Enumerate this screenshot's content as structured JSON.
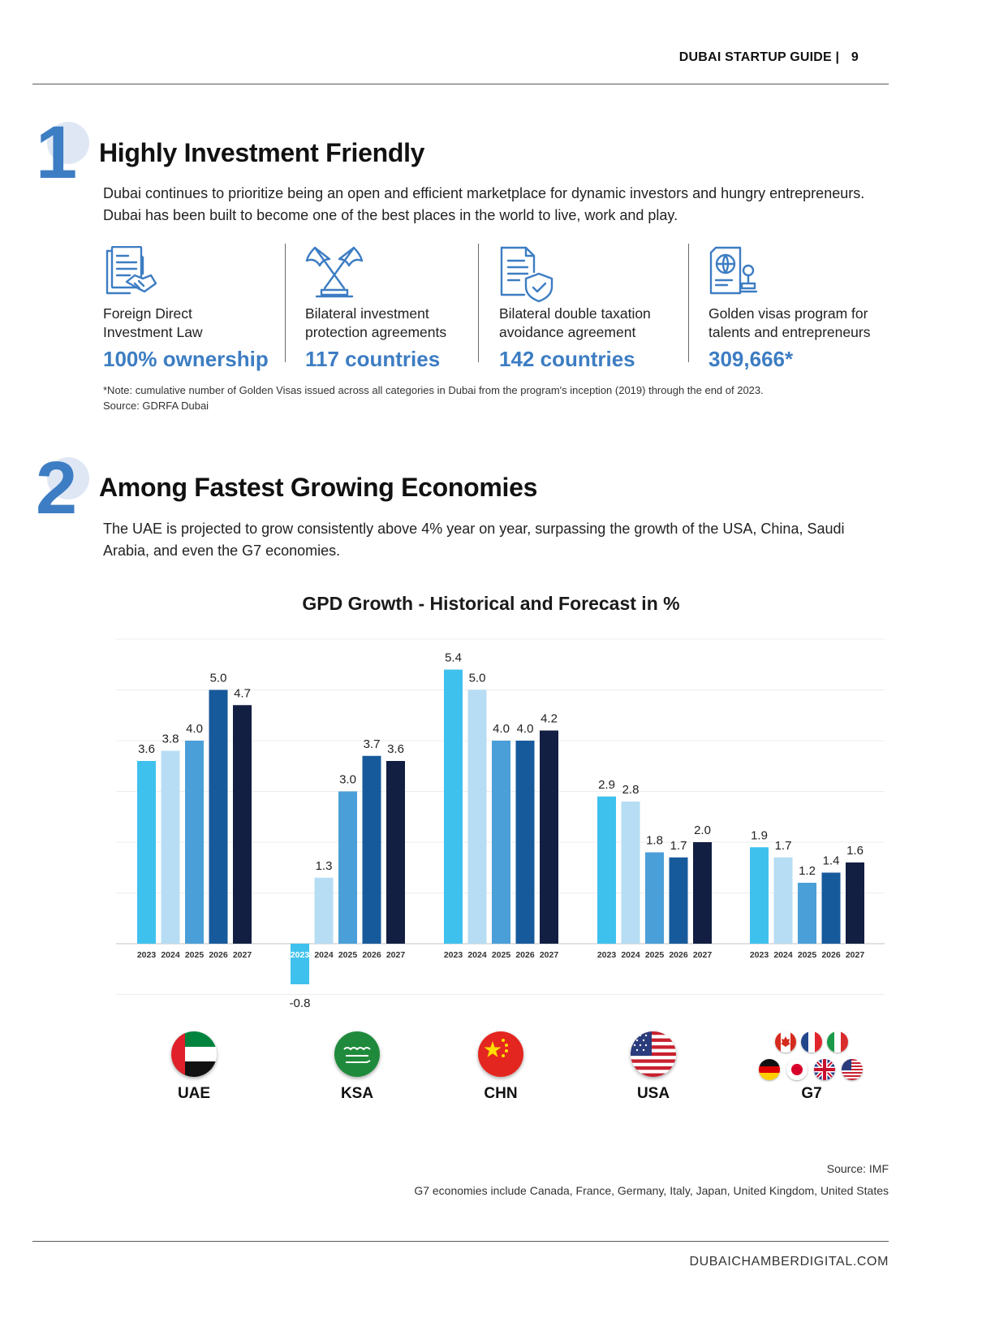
{
  "header": {
    "title": "DUBAI STARTUP GUIDE |",
    "page_number": "9"
  },
  "section1": {
    "number": "1",
    "title": "Highly Investment Friendly",
    "intro": "Dubai continues to prioritize being an open and efficient marketplace for dynamic investors and hungry entrepreneurs. Dubai has been built to become one of the best places in the world to live, work and play.",
    "stats": [
      {
        "icon": "contract-handshake-icon",
        "label_line1": "Foreign Direct",
        "label_line2": "Investment Law",
        "value": "100% ownership"
      },
      {
        "icon": "crossed-flags-icon",
        "label_line1": "Bilateral investment",
        "label_line2": "protection agreements",
        "value": "117 countries"
      },
      {
        "icon": "document-shield-icon",
        "label_line1": "Bilateral double taxation",
        "label_line2": "avoidance agreement",
        "value": "142 countries"
      },
      {
        "icon": "passport-stamp-icon",
        "label_line1": "Golden visas program for",
        "label_line2": "talents and entrepreneurs",
        "value": "309,666*"
      }
    ],
    "note": "*Note: cumulative number of Golden Visas issued across all categories in Dubai from the program's inception (2019) through the end of 2023.",
    "note_source": "Source: GDRFA Dubai"
  },
  "section2": {
    "number": "2",
    "title": "Among Fastest Growing Economies",
    "intro": "The UAE is projected to grow consistently above 4% year on year, surpassing the growth of the USA, China, Saudi Arabia, and even the G7 economies.",
    "source": "Source: IMF",
    "g7_note": "G7 economies include Canada, France, Germany, Italy, Japan, United Kingdom, United States"
  },
  "chart_data": {
    "type": "bar",
    "title": "GPD Growth - Historical and Forecast in %",
    "xlabel": "",
    "ylabel": "",
    "ylim": [
      -1,
      6
    ],
    "grid": true,
    "groups": [
      "UAE",
      "KSA",
      "CHN",
      "USA",
      "G7"
    ],
    "series": [
      {
        "name": "2023",
        "color": "#3fc1ee",
        "values": [
          3.6,
          -0.8,
          5.4,
          2.9,
          1.9
        ]
      },
      {
        "name": "2024",
        "color": "#b6ddf3",
        "values": [
          3.8,
          1.3,
          5.0,
          2.8,
          1.7
        ]
      },
      {
        "name": "2025",
        "color": "#4a9fd8",
        "values": [
          4.0,
          3.0,
          4.0,
          1.8,
          1.2
        ]
      },
      {
        "name": "2026",
        "color": "#175a9c",
        "values": [
          5.0,
          3.7,
          4.0,
          1.7,
          1.4
        ]
      },
      {
        "name": "2027",
        "color": "#131f42",
        "values": [
          4.7,
          3.6,
          4.2,
          2.0,
          1.6
        ]
      }
    ],
    "data_labels": [
      [
        "3.6",
        "3.8",
        "4.0",
        "5.0",
        "4.7"
      ],
      [
        "-0.8",
        "1.3",
        "3.0",
        "3.7",
        "3.6"
      ],
      [
        "5.4",
        "5.0",
        "4.0",
        "4.0",
        "4.2"
      ],
      [
        "2.9",
        "2.8",
        "1.8",
        "1.7",
        "2.0"
      ],
      [
        "1.9",
        "1.7",
        "1.2",
        "1.4",
        "1.6"
      ]
    ]
  },
  "countries": [
    {
      "code": "UAE",
      "flag": "uae-flag-icon"
    },
    {
      "code": "KSA",
      "flag": "saudi-flag-icon"
    },
    {
      "code": "CHN",
      "flag": "china-flag-icon"
    },
    {
      "code": "USA",
      "flag": "usa-flag-icon"
    },
    {
      "code": "G7",
      "flag": "g7-flags-icon"
    }
  ],
  "footer": {
    "site": "DUBAICHAMBERDIGITAL.COM"
  },
  "colors": {
    "accent": "#3d7dc3",
    "rule": "#5a5a5a"
  }
}
